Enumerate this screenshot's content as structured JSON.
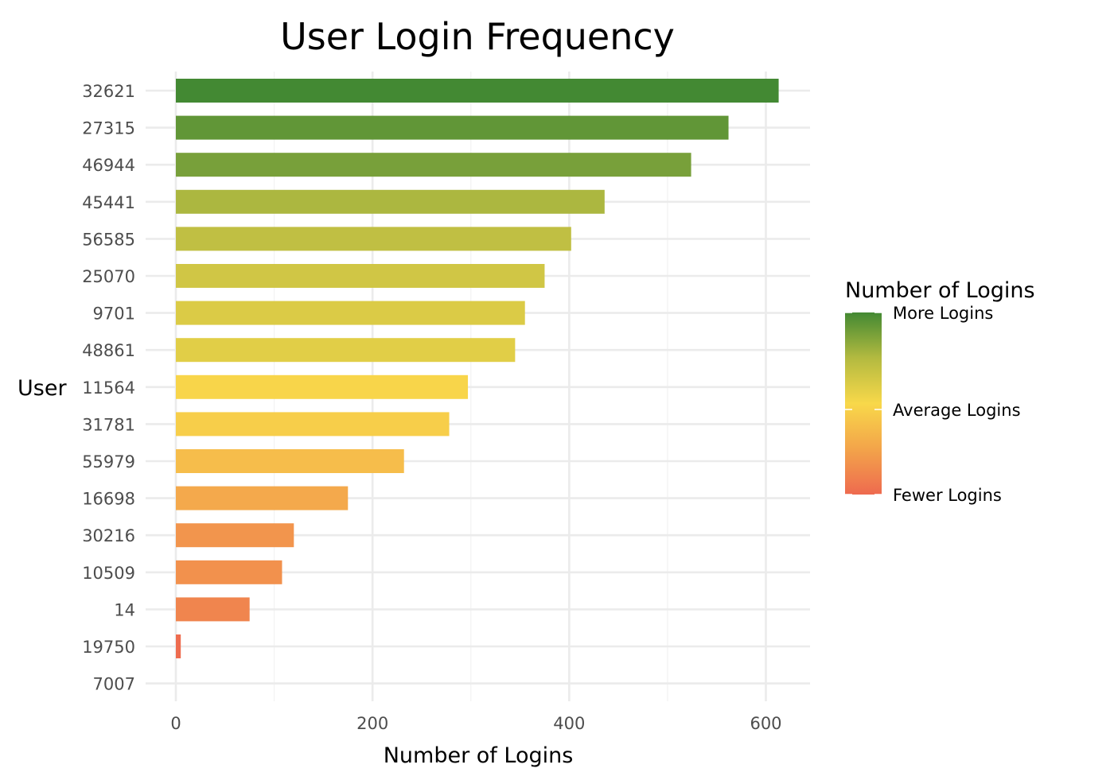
{
  "chart_data": {
    "type": "bar",
    "orientation": "horizontal",
    "title": "User Login Frequency",
    "xlabel": "Number of Logins",
    "ylabel": "User",
    "xlim": [
      0,
      650
    ],
    "x_ticks": [
      0,
      200,
      400,
      600
    ],
    "grid": true,
    "categories": [
      "32621",
      "27315",
      "46944",
      "45441",
      "56585",
      "25070",
      "9701",
      "48861",
      "11564",
      "31781",
      "55979",
      "16698",
      "30216",
      "10509",
      "14",
      "19750",
      "7007"
    ],
    "values": [
      613,
      562,
      524,
      436,
      402,
      375,
      355,
      345,
      297,
      278,
      232,
      175,
      120,
      108,
      75,
      5,
      0
    ],
    "legend": {
      "title": "Number of Logins",
      "position": "right",
      "labels": [
        "More Logins",
        "Average Logins",
        "Fewer Logins"
      ]
    },
    "colors": {
      "high": "#438933",
      "mid": "#f8d84a",
      "low": "#ee6a4f"
    }
  }
}
